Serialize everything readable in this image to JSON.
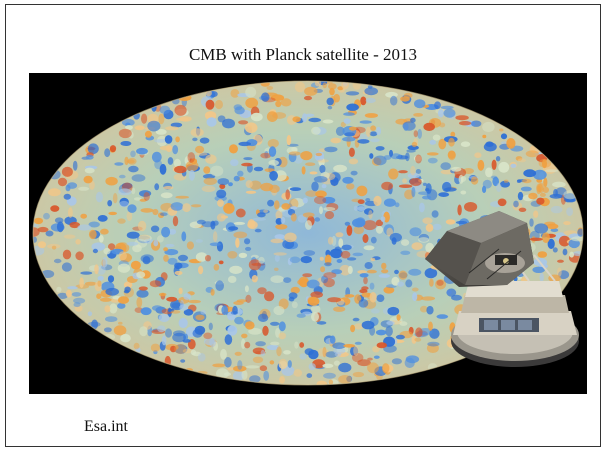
{
  "title": "CMB with Planck satellite - 2013",
  "caption": "Esa.int",
  "image": {
    "subject": "CMB all-sky map",
    "overlay_subject": "Planck satellite",
    "colors": {
      "background": "#000000",
      "cold": "#2d6fd6",
      "warm": "#f0a040",
      "hot": "#d9562a",
      "neutral": "#d8e4c8"
    }
  }
}
